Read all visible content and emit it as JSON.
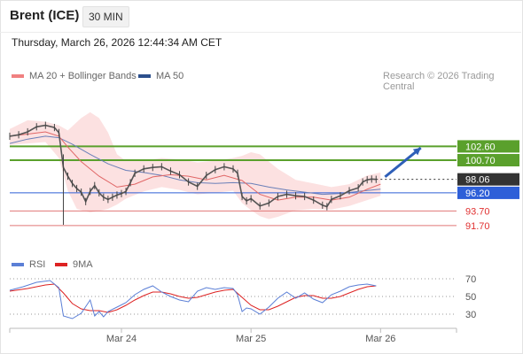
{
  "header": {
    "instrument": "Brent (ICE)",
    "timeframe": "30 MIN",
    "timestamp": "Thursday, March 26, 2026 12:44:34 AM CET"
  },
  "credit": "Research © 2026 Trading Central",
  "colors": {
    "price": "#555555",
    "ma20": "#e06666",
    "bollinger": "#fbdcdc",
    "ma50": "#6a7fb8",
    "resistance": "#5aa02c",
    "support": "#e07777",
    "last": "#333333",
    "pivot": "#2e5fd8",
    "rsi": "#5b7fd6",
    "rsi_ma": "#dd2222"
  },
  "chart_data": [
    {
      "type": "line",
      "series": [
        {
          "name": "MA 20 + Bollinger Bands",
          "key": "ma20"
        },
        {
          "name": "MA 50",
          "key": "ma50"
        }
      ],
      "levels": [
        {
          "label": "102.60",
          "value": 102.6,
          "kind": "resistance"
        },
        {
          "label": "100.70",
          "value": 100.7,
          "kind": "resistance"
        },
        {
          "label": "98.06",
          "value": 98.06,
          "kind": "last"
        },
        {
          "label": "96.20",
          "value": 96.2,
          "kind": "pivot"
        },
        {
          "label": "93.70",
          "value": 93.7,
          "kind": "support"
        },
        {
          "label": "91.70",
          "value": 91.7,
          "kind": "support"
        }
      ],
      "ylim": [
        89.0,
        108.5
      ],
      "xlim": [
        0,
        100
      ],
      "x_ticks": [
        {
          "label": "Mar 24",
          "x": 25
        },
        {
          "label": "Mar 25",
          "x": 54
        },
        {
          "label": "Mar 26",
          "x": 83
        }
      ],
      "close": [
        [
          0,
          104.0
        ],
        [
          2,
          104.2
        ],
        [
          4,
          104.6
        ],
        [
          6,
          105.3
        ],
        [
          8,
          105.5
        ],
        [
          10,
          105.2
        ],
        [
          11,
          104.5
        ],
        [
          12,
          99.7
        ],
        [
          13,
          98.5
        ],
        [
          14,
          97.5
        ],
        [
          15,
          96.8
        ],
        [
          16,
          96.3
        ],
        [
          17,
          95.0
        ],
        [
          18,
          96.4
        ],
        [
          19,
          97.2
        ],
        [
          20,
          96.2
        ],
        [
          21,
          95.6
        ],
        [
          22,
          95.3
        ],
        [
          23,
          95.6
        ],
        [
          24,
          95.9
        ],
        [
          25,
          96.1
        ],
        [
          26,
          96.4
        ],
        [
          27,
          97.6
        ],
        [
          28,
          98.9
        ],
        [
          30,
          99.5
        ],
        [
          32,
          99.7
        ],
        [
          34,
          99.8
        ],
        [
          36,
          99.2
        ],
        [
          38,
          98.7
        ],
        [
          40,
          97.7
        ],
        [
          42,
          97.1
        ],
        [
          44,
          98.6
        ],
        [
          46,
          99.4
        ],
        [
          48,
          99.8
        ],
        [
          50,
          99.5
        ],
        [
          51,
          98.9
        ],
        [
          52,
          95.7
        ],
        [
          53,
          95.1
        ],
        [
          54,
          95.4
        ],
        [
          56,
          94.4
        ],
        [
          58,
          94.8
        ],
        [
          60,
          95.7
        ],
        [
          62,
          96.0
        ],
        [
          64,
          95.8
        ],
        [
          66,
          95.7
        ],
        [
          68,
          95.2
        ],
        [
          70,
          94.5
        ],
        [
          71,
          94.3
        ],
        [
          72,
          95.3
        ],
        [
          74,
          95.8
        ],
        [
          76,
          96.5
        ],
        [
          78,
          96.9
        ],
        [
          79,
          97.7
        ],
        [
          80,
          98.0
        ],
        [
          81,
          98.1
        ],
        [
          82,
          98.06
        ]
      ],
      "ma20": [
        [
          0,
          104.0
        ],
        [
          4,
          104.3
        ],
        [
          8,
          104.6
        ],
        [
          11,
          104.0
        ],
        [
          13,
          102.5
        ],
        [
          16,
          100.5
        ],
        [
          20,
          98.5
        ],
        [
          24,
          97.0
        ],
        [
          28,
          97.4
        ],
        [
          32,
          98.4
        ],
        [
          36,
          98.7
        ],
        [
          40,
          98.5
        ],
        [
          44,
          98.0
        ],
        [
          48,
          98.6
        ],
        [
          52,
          97.9
        ],
        [
          56,
          96.0
        ],
        [
          60,
          95.2
        ],
        [
          64,
          95.6
        ],
        [
          68,
          95.6
        ],
        [
          72,
          95.2
        ],
        [
          76,
          95.6
        ],
        [
          80,
          96.7
        ],
        [
          83,
          97.4
        ]
      ],
      "ma50": [
        [
          0,
          103.0
        ],
        [
          4,
          103.6
        ],
        [
          8,
          104.0
        ],
        [
          11,
          103.8
        ],
        [
          14,
          102.9
        ],
        [
          18,
          101.5
        ],
        [
          22,
          100.2
        ],
        [
          26,
          99.3
        ],
        [
          30,
          99.0
        ],
        [
          34,
          98.6
        ],
        [
          38,
          98.0
        ],
        [
          42,
          97.6
        ],
        [
          46,
          97.5
        ],
        [
          50,
          97.6
        ],
        [
          54,
          97.5
        ],
        [
          58,
          97.0
        ],
        [
          62,
          96.6
        ],
        [
          66,
          96.3
        ],
        [
          70,
          96.0
        ],
        [
          74,
          96.1
        ],
        [
          78,
          96.4
        ],
        [
          83,
          96.7
        ]
      ],
      "bb_upper": [
        [
          0,
          105.0
        ],
        [
          4,
          106.2
        ],
        [
          8,
          106.0
        ],
        [
          11,
          105.5
        ],
        [
          13,
          104.8
        ],
        [
          16,
          106.5
        ],
        [
          18,
          107.3
        ],
        [
          20,
          106.5
        ],
        [
          22,
          104.5
        ],
        [
          24,
          101.5
        ],
        [
          26,
          100.6
        ],
        [
          30,
          100.6
        ],
        [
          34,
          101.0
        ],
        [
          38,
          100.8
        ],
        [
          42,
          100.4
        ],
        [
          46,
          100.6
        ],
        [
          50,
          101.0
        ],
        [
          52,
          101.3
        ],
        [
          54,
          101.8
        ],
        [
          56,
          101.5
        ],
        [
          60,
          99.5
        ],
        [
          64,
          98.0
        ],
        [
          68,
          97.5
        ],
        [
          72,
          97.0
        ],
        [
          76,
          97.4
        ],
        [
          80,
          98.6
        ],
        [
          83,
          99.0
        ]
      ],
      "bb_lower": [
        [
          0,
          102.8
        ],
        [
          4,
          103.0
        ],
        [
          8,
          103.2
        ],
        [
          11,
          101.0
        ],
        [
          13,
          96.5
        ],
        [
          15,
          94.0
        ],
        [
          18,
          93.5
        ],
        [
          20,
          93.7
        ],
        [
          22,
          94.0
        ],
        [
          24,
          94.6
        ],
        [
          26,
          95.4
        ],
        [
          30,
          96.4
        ],
        [
          34,
          97.0
        ],
        [
          38,
          96.6
        ],
        [
          42,
          96.0
        ],
        [
          46,
          96.2
        ],
        [
          50,
          96.5
        ],
        [
          52,
          94.8
        ],
        [
          54,
          93.8
        ],
        [
          56,
          93.0
        ],
        [
          58,
          92.6
        ],
        [
          60,
          92.9
        ],
        [
          64,
          93.8
        ],
        [
          68,
          94.0
        ],
        [
          72,
          93.9
        ],
        [
          76,
          94.4
        ],
        [
          80,
          95.2
        ],
        [
          83,
          95.8
        ]
      ],
      "projection": {
        "from": [
          84,
          98.4
        ],
        "to": [
          92,
          102.4
        ]
      }
    },
    {
      "type": "line",
      "title": "",
      "series": [
        {
          "name": "RSI",
          "key": "rsi"
        },
        {
          "name": "9MA",
          "key": "rsi_ma"
        }
      ],
      "ylim": [
        20,
        80
      ],
      "y_ticks": [
        70,
        50,
        30
      ],
      "rsi": [
        [
          0,
          57
        ],
        [
          3,
          61
        ],
        [
          6,
          66
        ],
        [
          9,
          68
        ],
        [
          11,
          60
        ],
        [
          12,
          28
        ],
        [
          14,
          25
        ],
        [
          16,
          31
        ],
        [
          18,
          46
        ],
        [
          19,
          28
        ],
        [
          20,
          33
        ],
        [
          21,
          27
        ],
        [
          22,
          33
        ],
        [
          24,
          38
        ],
        [
          26,
          43
        ],
        [
          28,
          52
        ],
        [
          30,
          58
        ],
        [
          32,
          62
        ],
        [
          34,
          55
        ],
        [
          36,
          50
        ],
        [
          38,
          46
        ],
        [
          40,
          44
        ],
        [
          42,
          56
        ],
        [
          44,
          60
        ],
        [
          46,
          58
        ],
        [
          48,
          60
        ],
        [
          50,
          59
        ],
        [
          51,
          52
        ],
        [
          52,
          33
        ],
        [
          53,
          37
        ],
        [
          54,
          36
        ],
        [
          56,
          30
        ],
        [
          58,
          38
        ],
        [
          60,
          48
        ],
        [
          62,
          55
        ],
        [
          64,
          48
        ],
        [
          66,
          54
        ],
        [
          68,
          47
        ],
        [
          70,
          43
        ],
        [
          72,
          52
        ],
        [
          74,
          56
        ],
        [
          76,
          61
        ],
        [
          78,
          63
        ],
        [
          80,
          64
        ],
        [
          82,
          62
        ]
      ],
      "rsi_ma": [
        [
          0,
          56
        ],
        [
          4,
          59
        ],
        [
          8,
          63
        ],
        [
          10,
          64
        ],
        [
          12,
          54
        ],
        [
          14,
          42
        ],
        [
          16,
          36
        ],
        [
          18,
          34
        ],
        [
          20,
          34
        ],
        [
          22,
          32
        ],
        [
          24,
          35
        ],
        [
          26,
          40
        ],
        [
          28,
          46
        ],
        [
          30,
          51
        ],
        [
          32,
          55
        ],
        [
          34,
          55
        ],
        [
          36,
          53
        ],
        [
          38,
          50
        ],
        [
          40,
          48
        ],
        [
          42,
          49
        ],
        [
          44,
          52
        ],
        [
          46,
          55
        ],
        [
          48,
          57
        ],
        [
          50,
          58
        ],
        [
          52,
          49
        ],
        [
          54,
          40
        ],
        [
          56,
          35
        ],
        [
          58,
          35
        ],
        [
          60,
          39
        ],
        [
          62,
          44
        ],
        [
          64,
          49
        ],
        [
          66,
          51
        ],
        [
          68,
          51
        ],
        [
          70,
          48
        ],
        [
          72,
          48
        ],
        [
          74,
          50
        ],
        [
          76,
          54
        ],
        [
          78,
          58
        ],
        [
          80,
          61
        ],
        [
          82,
          62
        ]
      ]
    }
  ]
}
